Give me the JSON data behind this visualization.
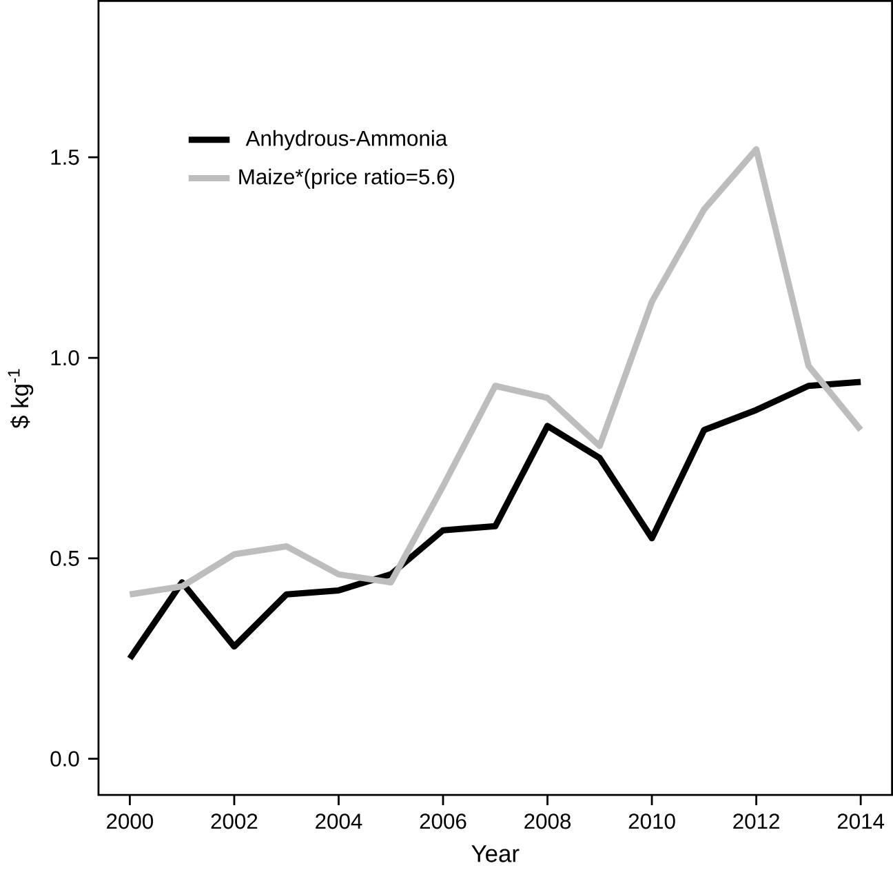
{
  "chart_data": {
    "type": "line",
    "xlabel": "Year",
    "ylabel": "$ kg$^{-1}$",
    "x": [
      2000,
      2001,
      2002,
      2003,
      2004,
      2005,
      2006,
      2007,
      2008,
      2009,
      2010,
      2011,
      2012,
      2013,
      2014
    ],
    "series": [
      {
        "name": "Anhydrous-Ammonia",
        "color": "#000000",
        "values": [
          0.25,
          0.44,
          0.28,
          0.41,
          0.42,
          0.46,
          0.57,
          0.58,
          0.83,
          0.75,
          0.55,
          0.82,
          0.87,
          0.93,
          0.94
        ]
      },
      {
        "name": "Maize*(price ratio=5.6)",
        "color": "#bdbdbd",
        "values": [
          0.41,
          0.43,
          0.51,
          0.53,
          0.46,
          0.44,
          0.68,
          0.93,
          0.9,
          0.78,
          1.14,
          1.37,
          1.52,
          0.98,
          0.82
        ]
      }
    ],
    "xlim": [
      1999.4,
      2014.6
    ],
    "ylim": [
      -0.09,
      1.89
    ],
    "xticks": [
      2000,
      2002,
      2004,
      2006,
      2008,
      2010,
      2012,
      2014
    ],
    "yticks": [
      {
        "value": 0,
        "label": "0.0"
      },
      {
        "value": 0.5,
        "label": "0.5"
      },
      {
        "value": 1,
        "label": "1.0"
      },
      {
        "value": 1.5,
        "label": "1.5"
      }
    ],
    "legend": "top left",
    "grid": false,
    "marker": "none",
    "line_style": "solid"
  }
}
